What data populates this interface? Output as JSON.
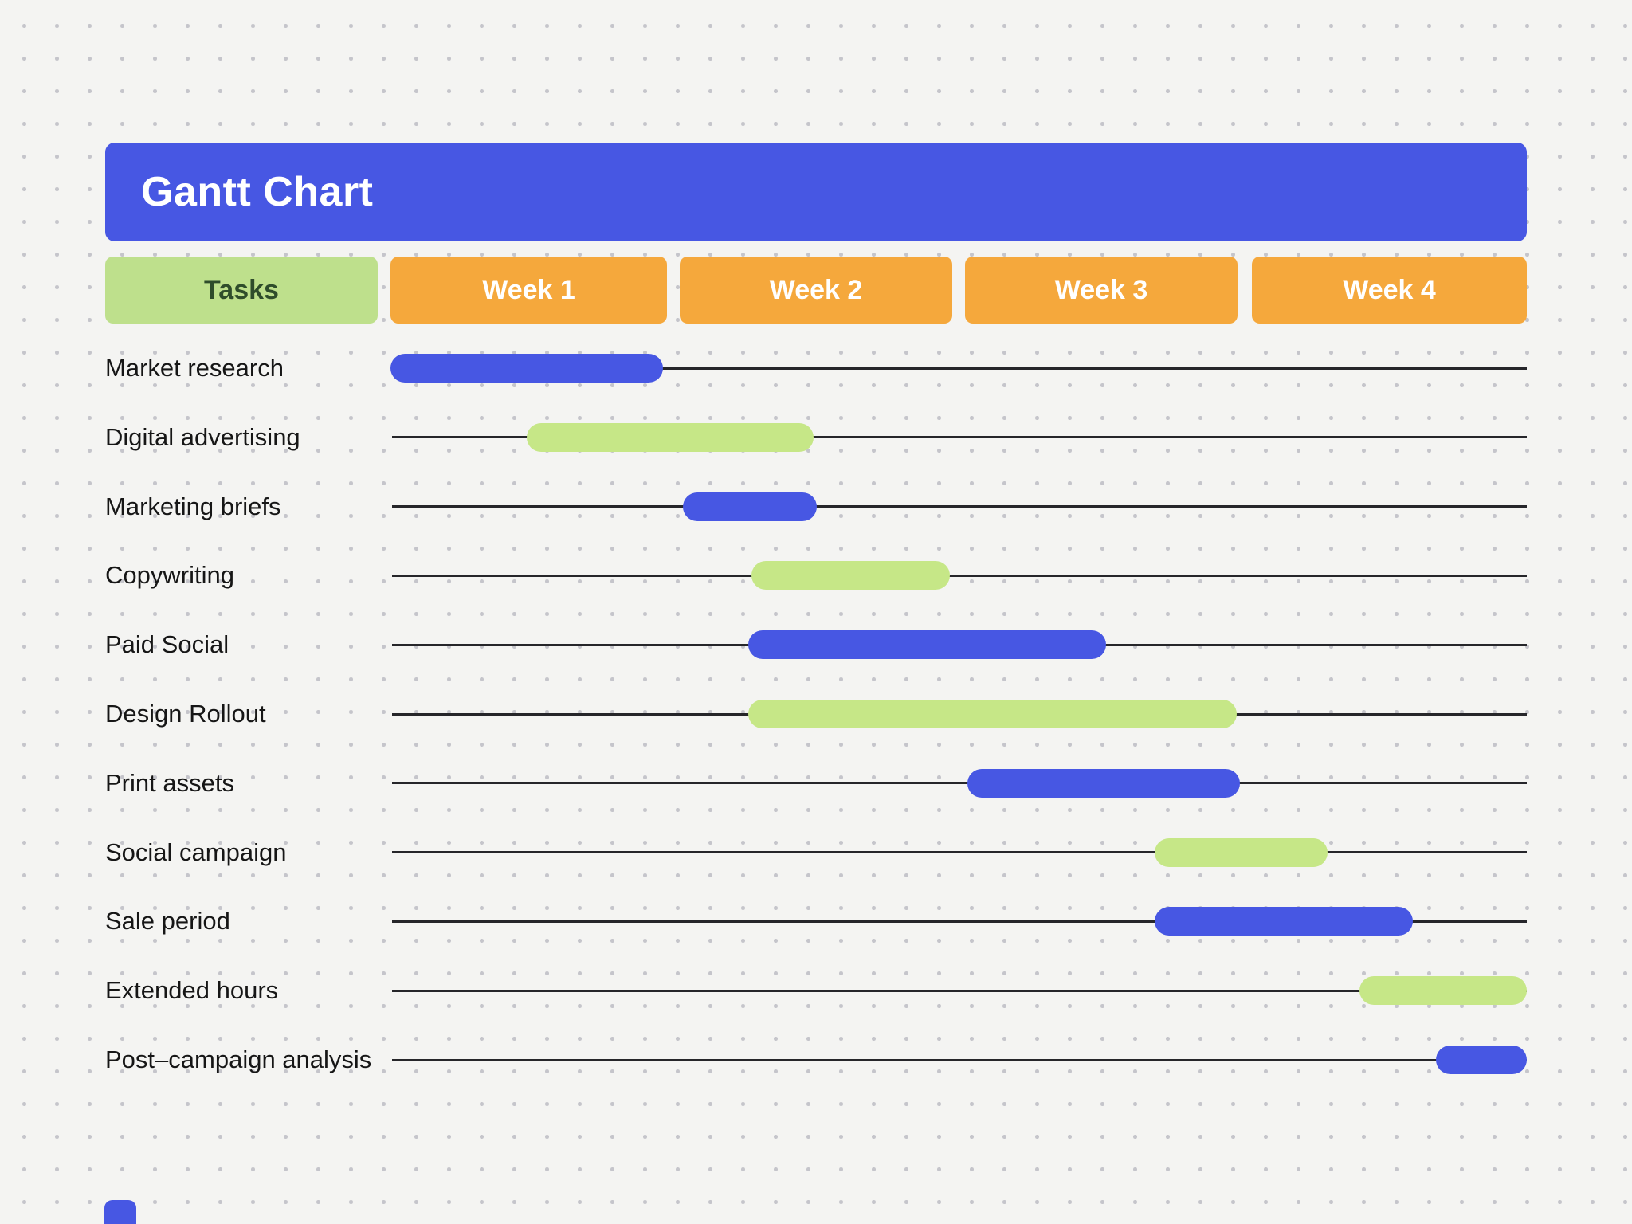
{
  "title": "Gantt Chart",
  "columns": {
    "tasks_label": "Tasks",
    "weeks": [
      "Week 1",
      "Week 2",
      "Week 3",
      "Week 4"
    ]
  },
  "colors": {
    "blue": "#4757e3",
    "green": "#c6e787",
    "orange": "#f5a83c",
    "header_green_bg": "#bee08c",
    "header_green_text": "#2f4d2b",
    "background": "#f4f4f2",
    "dot_grid": "#c5c5cb",
    "line": "#26262a"
  },
  "chart_data": {
    "type": "gantt",
    "title": "Gantt Chart",
    "x_axis": {
      "unit": "weeks",
      "categories": [
        "Week 1",
        "Week 2",
        "Week 3",
        "Week 4"
      ],
      "range": [
        0,
        4
      ]
    },
    "legend": "none",
    "tasks": [
      {
        "label": "Market research",
        "start_week": 0.0,
        "end_week": 0.96,
        "color": "blue"
      },
      {
        "label": "Digital advertising",
        "start_week": 0.48,
        "end_week": 1.49,
        "color": "green"
      },
      {
        "label": "Marketing briefs",
        "start_week": 1.03,
        "end_week": 1.5,
        "color": "blue"
      },
      {
        "label": "Copywriting",
        "start_week": 1.27,
        "end_week": 1.97,
        "color": "green"
      },
      {
        "label": "Paid Social",
        "start_week": 1.26,
        "end_week": 2.52,
        "color": "blue"
      },
      {
        "label": "Design Rollout",
        "start_week": 1.26,
        "end_week": 2.98,
        "color": "green"
      },
      {
        "label": "Print assets",
        "start_week": 2.03,
        "end_week": 2.99,
        "color": "blue"
      },
      {
        "label": "Social campaign",
        "start_week": 2.69,
        "end_week": 3.3,
        "color": "green"
      },
      {
        "label": "Sale period",
        "start_week": 2.69,
        "end_week": 3.6,
        "color": "blue"
      },
      {
        "label": "Extended hours",
        "start_week": 3.41,
        "end_week": 4.0,
        "color": "green"
      },
      {
        "label": "Post–campaign analysis",
        "start_week": 3.68,
        "end_week": 4.0,
        "color": "blue"
      }
    ]
  }
}
